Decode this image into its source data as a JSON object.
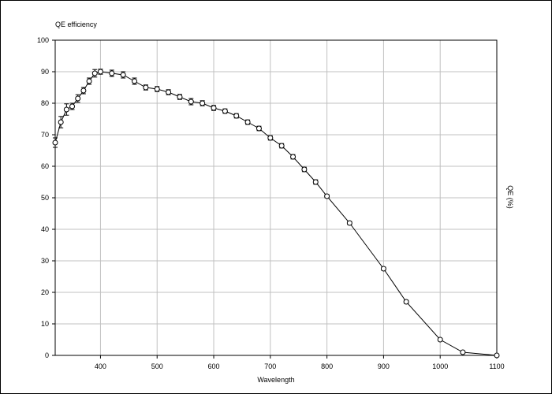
{
  "chart_data": {
    "type": "line",
    "title": "QE efficiency",
    "xlabel": "Wavelength",
    "ylabel": "QE (%)",
    "xlim": [
      320,
      1100
    ],
    "ylim": [
      0,
      100
    ],
    "xticks": [
      400,
      500,
      600,
      700,
      800,
      900,
      1000,
      1100
    ],
    "yticks": [
      0,
      10,
      20,
      30,
      40,
      50,
      60,
      70,
      80,
      90,
      100
    ],
    "grid": true,
    "colors": {
      "line": "#000000",
      "grid": "#c0c0c0",
      "axis": "#000000"
    },
    "series": [
      {
        "markers": "circle",
        "points": [
          {
            "x": 320,
            "y": 67.5,
            "err": 1.5
          },
          {
            "x": 330,
            "y": 74.0,
            "err": 1.8
          },
          {
            "x": 340,
            "y": 78.0,
            "err": 1.8
          },
          {
            "x": 350,
            "y": 79.0,
            "err": 1.0
          },
          {
            "x": 360,
            "y": 81.5,
            "err": 1.2
          },
          {
            "x": 370,
            "y": 84.0,
            "err": 1.0
          },
          {
            "x": 380,
            "y": 87.0,
            "err": 1.0
          },
          {
            "x": 390,
            "y": 89.5,
            "err": 1.2
          },
          {
            "x": 400,
            "y": 90.0,
            "err": 0.8
          },
          {
            "x": 420,
            "y": 89.5,
            "err": 1.0
          },
          {
            "x": 440,
            "y": 89.0,
            "err": 1.0
          },
          {
            "x": 460,
            "y": 87.0,
            "err": 1.0
          },
          {
            "x": 480,
            "y": 85.0,
            "err": 0.8
          },
          {
            "x": 500,
            "y": 84.5,
            "err": 0.8
          },
          {
            "x": 520,
            "y": 83.5,
            "err": 0.8
          },
          {
            "x": 540,
            "y": 82.0,
            "err": 0.8
          },
          {
            "x": 560,
            "y": 80.5,
            "err": 1.0
          },
          {
            "x": 580,
            "y": 80.0,
            "err": 0.8
          },
          {
            "x": 600,
            "y": 78.5,
            "err": 0.8
          },
          {
            "x": 620,
            "y": 77.5,
            "err": 0.7
          },
          {
            "x": 640,
            "y": 76.0,
            "err": 0.7
          },
          {
            "x": 660,
            "y": 74.0,
            "err": 0.7
          },
          {
            "x": 680,
            "y": 72.0,
            "err": 0.7
          },
          {
            "x": 700,
            "y": 69.0,
            "err": 0.7
          },
          {
            "x": 720,
            "y": 66.5,
            "err": 0.7
          },
          {
            "x": 740,
            "y": 63.0,
            "err": 0.7
          },
          {
            "x": 760,
            "y": 59.0,
            "err": 0.7
          },
          {
            "x": 780,
            "y": 55.0,
            "err": 0.7
          },
          {
            "x": 800,
            "y": 50.5,
            "err": 0.5
          },
          {
            "x": 840,
            "y": 42.0,
            "err": 0.5
          },
          {
            "x": 900,
            "y": 27.5,
            "err": 0.5
          },
          {
            "x": 940,
            "y": 17.0,
            "err": 0.5
          },
          {
            "x": 1000,
            "y": 5.0,
            "err": 0.3
          },
          {
            "x": 1040,
            "y": 1.0,
            "err": 0.3
          },
          {
            "x": 1100,
            "y": 0.0,
            "err": 0.2
          }
        ]
      }
    ]
  }
}
